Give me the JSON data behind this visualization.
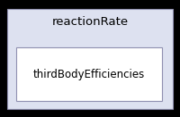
{
  "outer_label": "reactionRate",
  "inner_label": "thirdBodyEfficiencies",
  "outer_bg": "#dde1f0",
  "inner_bg": "#ffffff",
  "outer_border_color": "#9090b0",
  "inner_border_color": "#9090b0",
  "text_color": "#000000",
  "fig_bg": "#000000",
  "font_size_outer": 9.5,
  "font_size_inner": 8.5
}
